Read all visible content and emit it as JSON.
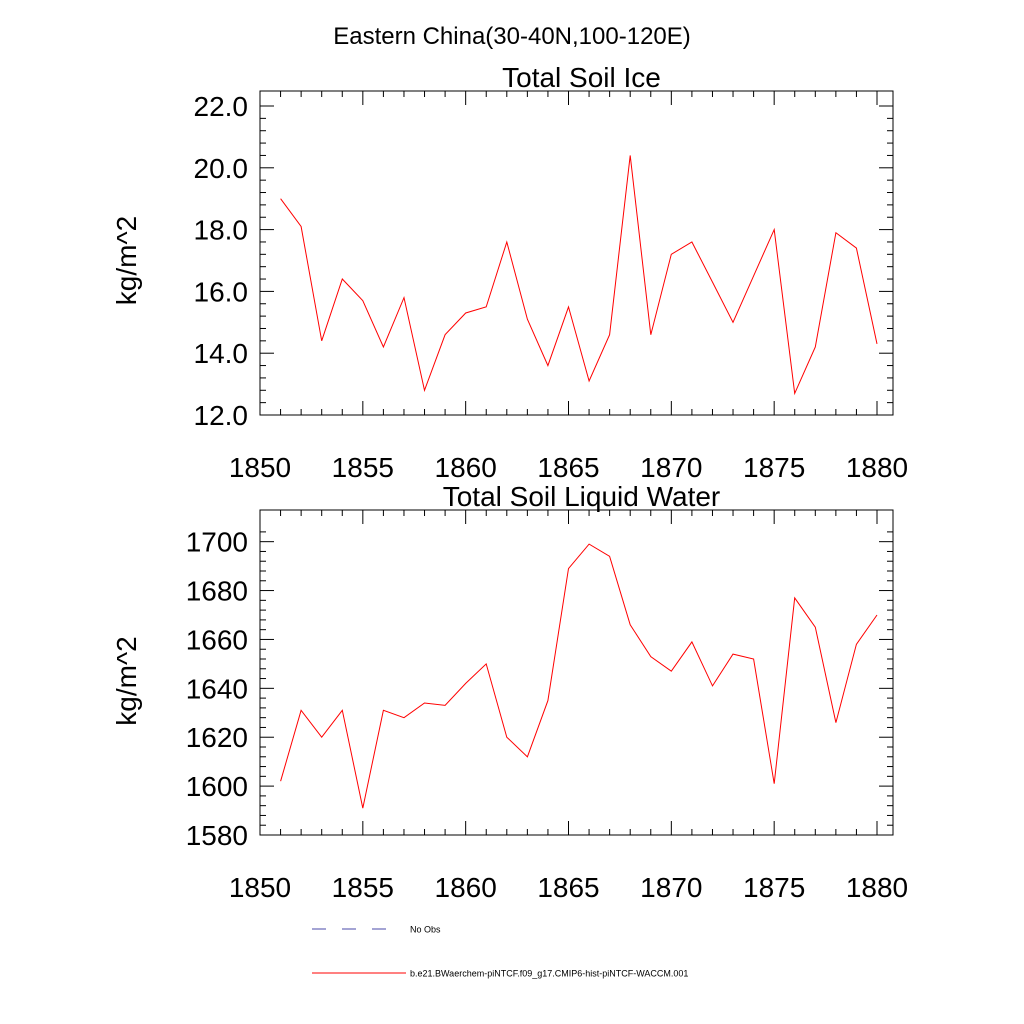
{
  "figure": {
    "main_title": "Eastern China(30-40N,100-120E)"
  },
  "colors": {
    "series_line": "#ff0000",
    "obs_line": "#4a4aa8",
    "axis": "#000000"
  },
  "legend": {
    "placement": "bottom-center",
    "entries": [
      {
        "label": "No Obs",
        "style": "dashed",
        "color": "#4a4aa8"
      },
      {
        "label": "b.e21.BWaerchem-piNTCF.f09_g17.CMIP6-hist-piNTCF-WACCM.001",
        "style": "solid",
        "color": "#ff0000"
      }
    ]
  },
  "chart_data": [
    {
      "type": "line",
      "title": "Total Soil Ice",
      "xlabel": "",
      "ylabel": "kg/m^2",
      "xlim": [
        1850,
        1880
      ],
      "ylim": [
        12.0,
        22.0
      ],
      "xticks": [
        1850,
        1855,
        1860,
        1865,
        1870,
        1875,
        1880
      ],
      "xtick_labels": [
        "1850",
        "1855",
        "1860",
        "1865",
        "1870",
        "1875",
        "1880"
      ],
      "yticks": [
        12.0,
        14.0,
        16.0,
        18.0,
        20.0,
        22.0
      ],
      "ytick_labels": [
        "12.0",
        "14.0",
        "16.0",
        "18.0",
        "20.0",
        "22.0"
      ],
      "grid": false,
      "x": [
        1851,
        1852,
        1853,
        1854,
        1855,
        1856,
        1857,
        1858,
        1859,
        1860,
        1861,
        1862,
        1863,
        1864,
        1865,
        1866,
        1867,
        1868,
        1869,
        1870,
        1871,
        1872,
        1873,
        1874,
        1875,
        1876,
        1877,
        1878,
        1879,
        1880
      ],
      "series": [
        {
          "name": "b.e21.BWaerchem-piNTCF.f09_g17.CMIP6-hist-piNTCF-WACCM.001",
          "values": [
            19.0,
            18.1,
            14.4,
            16.4,
            15.7,
            14.2,
            15.8,
            12.8,
            14.6,
            15.3,
            15.5,
            17.6,
            15.1,
            13.6,
            15.5,
            13.1,
            14.6,
            20.4,
            14.6,
            17.2,
            17.6,
            16.3,
            15.0,
            16.5,
            18.0,
            12.7,
            14.2,
            17.9,
            17.4,
            14.3
          ]
        }
      ]
    },
    {
      "type": "line",
      "title": "Total Soil Liquid Water",
      "xlabel": "",
      "ylabel": "kg/m^2",
      "xlim": [
        1850,
        1880
      ],
      "ylim": [
        1580,
        1706
      ],
      "xticks": [
        1850,
        1855,
        1860,
        1865,
        1870,
        1875,
        1880
      ],
      "xtick_labels": [
        "1850",
        "1855",
        "1860",
        "1865",
        "1870",
        "1875",
        "1880"
      ],
      "yticks": [
        1580,
        1600,
        1620,
        1640,
        1660,
        1680,
        1700
      ],
      "ytick_labels": [
        "1580",
        "1600",
        "1620",
        "1640",
        "1660",
        "1680",
        "1700"
      ],
      "grid": false,
      "x": [
        1851,
        1852,
        1853,
        1854,
        1855,
        1856,
        1857,
        1858,
        1859,
        1860,
        1861,
        1862,
        1863,
        1864,
        1865,
        1866,
        1867,
        1868,
        1869,
        1870,
        1871,
        1872,
        1873,
        1874,
        1875,
        1876,
        1877,
        1878,
        1879,
        1880
      ],
      "series": [
        {
          "name": "b.e21.BWaerchem-piNTCF.f09_g17.CMIP6-hist-piNTCF-WACCM.001",
          "values": [
            1602,
            1631,
            1620,
            1631,
            1591,
            1631,
            1628,
            1634,
            1633,
            1642,
            1650,
            1620,
            1612,
            1635,
            1689,
            1699,
            1694,
            1666,
            1653,
            1647,
            1659,
            1641,
            1654,
            1652,
            1601,
            1677,
            1665,
            1626,
            1658,
            1670
          ]
        }
      ]
    }
  ]
}
